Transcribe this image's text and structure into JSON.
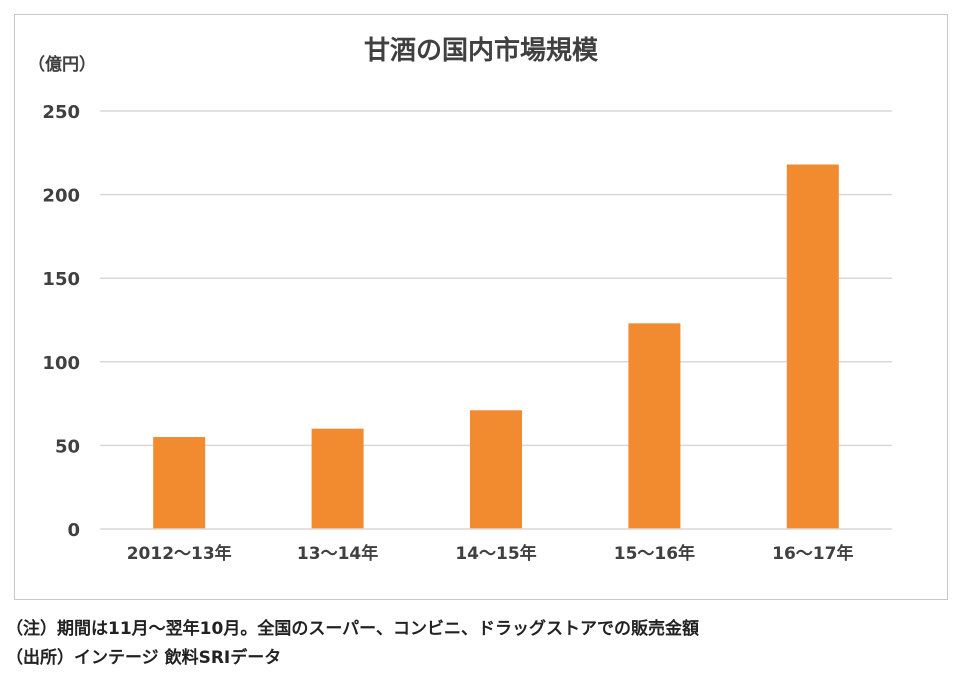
{
  "chart_data": {
    "type": "bar",
    "title": "甘酒の国内市場規模",
    "ylabel": "（億円）",
    "xlabel": "",
    "categories": [
      "2012～13年",
      "13～14年",
      "14～15年",
      "15～16年",
      "16～17年"
    ],
    "values": [
      55,
      60,
      71,
      123,
      218
    ],
    "ylim": [
      0,
      250
    ],
    "yticks": [
      0,
      50,
      100,
      150,
      200,
      250
    ],
    "grid": true,
    "legend": "none",
    "bar_color": "#f28a30",
    "grid_color": "#d9d9d9"
  },
  "notes": {
    "note1": "（注）期間は11月～翌年10月。全国のスーパー、コンビニ、ドラッグストアでの販売金額",
    "note2": "（出所）インテージ 飲料SRIデータ"
  }
}
